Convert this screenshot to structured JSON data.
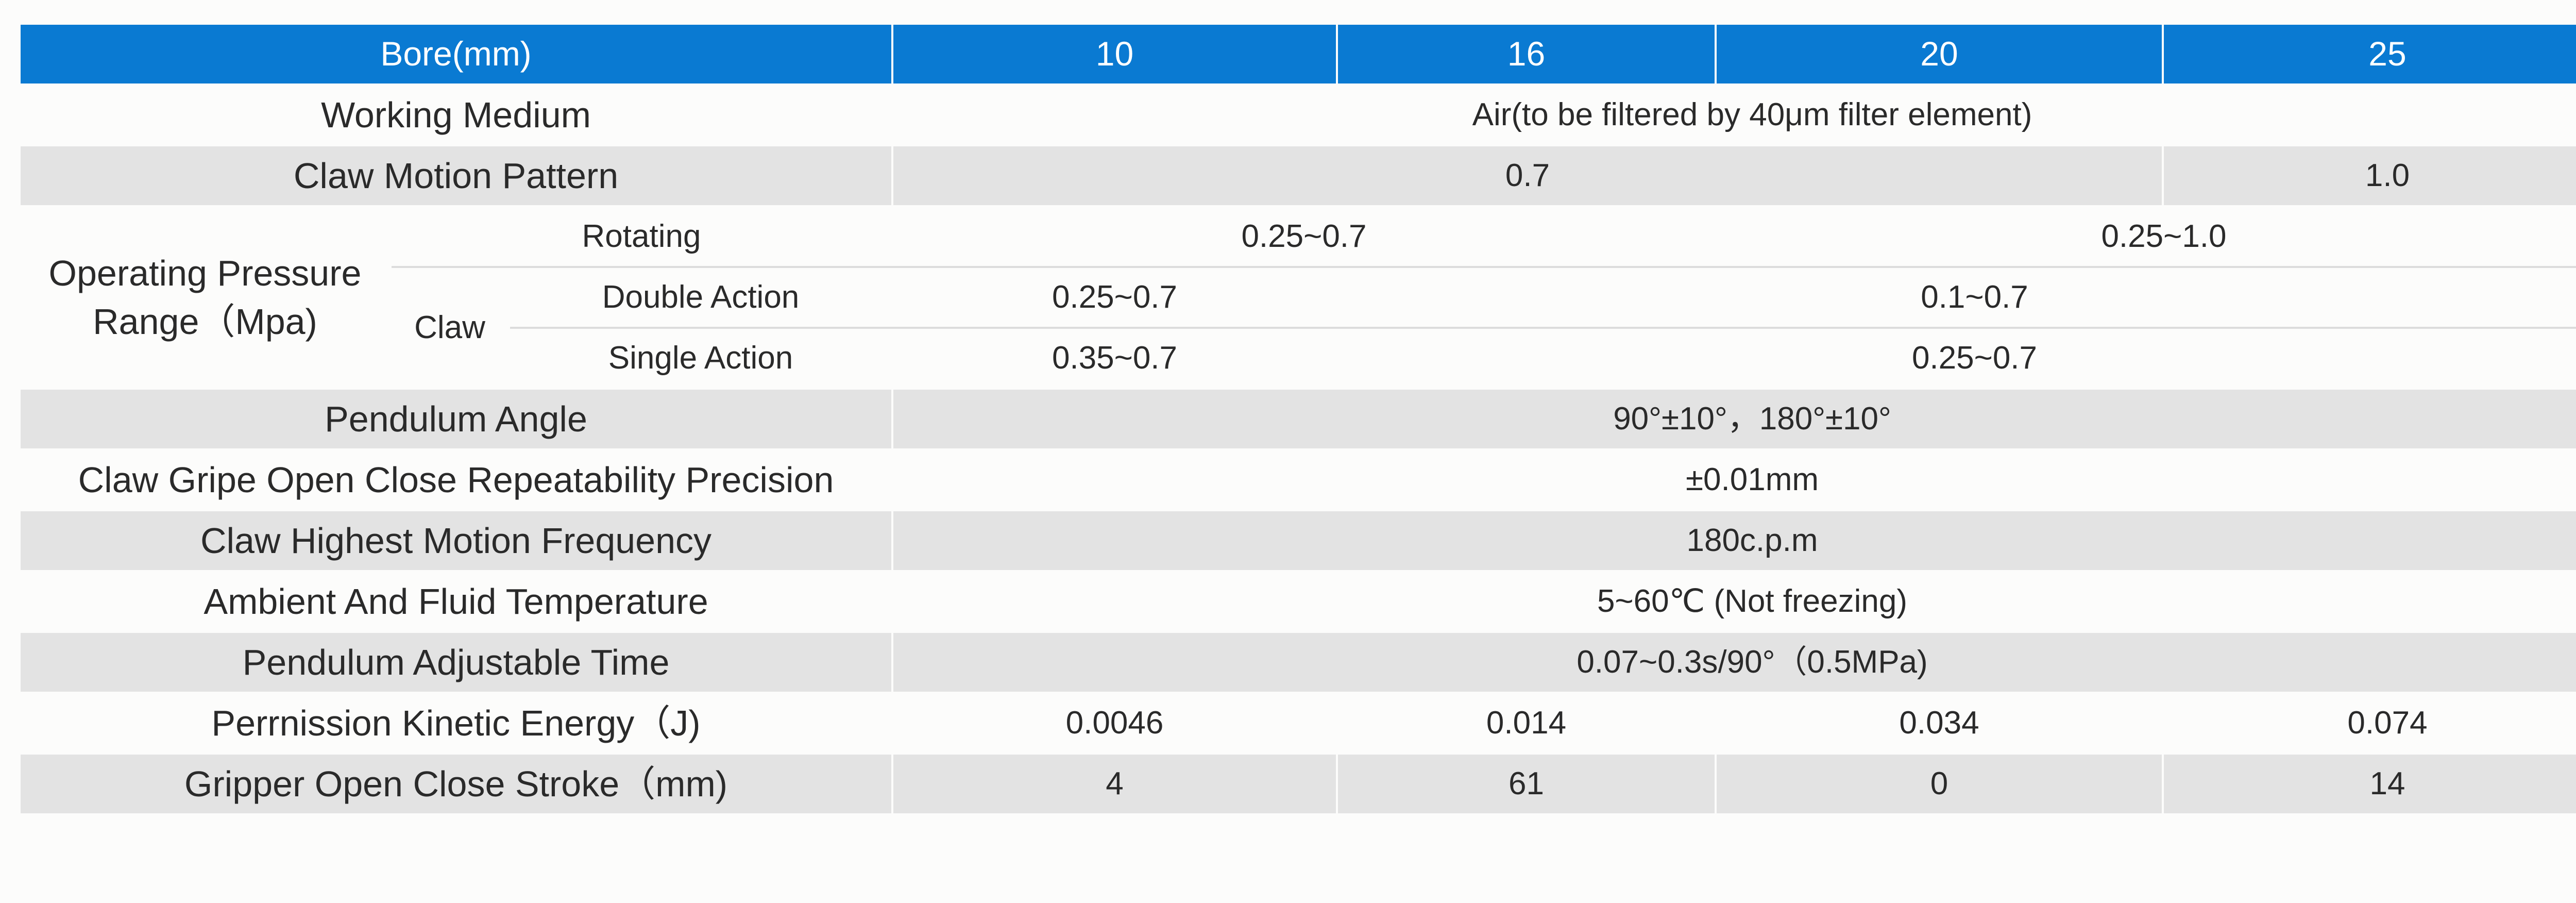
{
  "header": {
    "bore_label": "Bore(mm)",
    "bores": [
      "10",
      "16",
      "20",
      "25"
    ]
  },
  "rows": {
    "working_medium": {
      "label": "Working Medium",
      "value": "Air(to be filtered by 40μm filter element)"
    },
    "claw_motion_pattern": {
      "label": "Claw Motion Pattern",
      "value_a": "0.7",
      "value_b": "1.0"
    },
    "operating_pressure": {
      "label_line1": "Operating Pressure",
      "label_line2": "Range（Mpa)",
      "rotating": {
        "label": "Rotating",
        "value_a": "0.25~0.7",
        "value_b": "0.25~1.0"
      },
      "claw_label": "Claw",
      "double_action": {
        "label": "Double Action",
        "value_a": "0.25~0.7",
        "value_b": "0.1~0.7"
      },
      "single_action": {
        "label": "Single Action",
        "value_a": "0.35~0.7",
        "value_b": "0.25~0.7"
      }
    },
    "pendulum_angle": {
      "label": "Pendulum Angle",
      "value": "90°±10°，180°±10°"
    },
    "repeatability": {
      "label": "Claw Gripe Open Close Repeatability Precision",
      "value": "±0.01mm"
    },
    "motion_frequency": {
      "label": "Claw Highest Motion Frequency",
      "value": "180c.p.m"
    },
    "temperature": {
      "label": "Ambient And Fluid Temperature",
      "value": "5~60℃ (Not freezing)"
    },
    "adjustable_time": {
      "label": "Pendulum Adjustable Time",
      "value": "0.07~0.3s/90°（0.5MPa)"
    },
    "kinetic_energy": {
      "label": "Perrnission Kinetic Energy（J)",
      "values": [
        "0.0046",
        "0.014",
        "0.034",
        "0.074"
      ]
    },
    "stroke": {
      "label": "Gripper Open Close Stroke（mm)",
      "values": [
        "4",
        "61",
        "0",
        "14"
      ]
    }
  },
  "colors": {
    "header_bg": "#0a7ad2",
    "header_text": "#ffffff",
    "shaded_row": "#e3e3e3",
    "page_bg": "#fcfcfb"
  }
}
